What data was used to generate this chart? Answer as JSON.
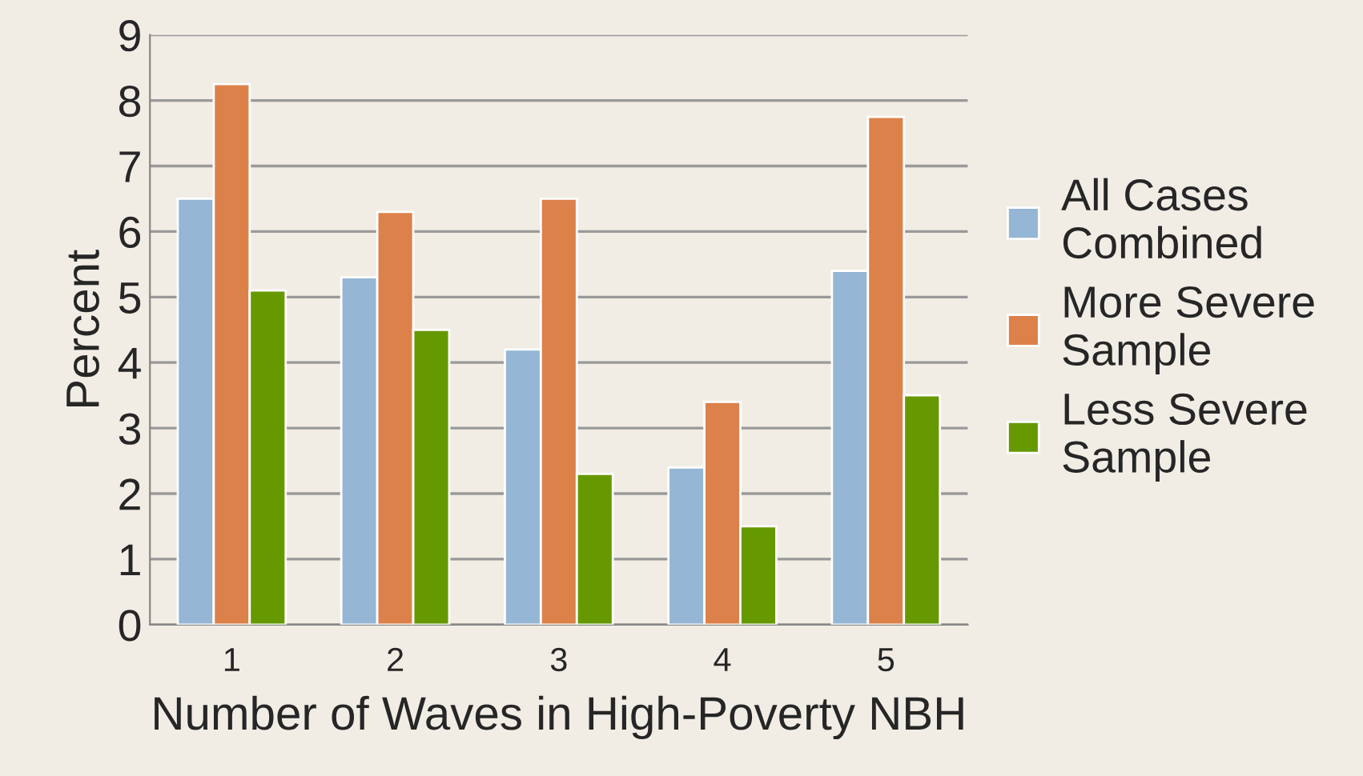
{
  "chart_data": {
    "type": "bar",
    "xlabel": "Number of Waves in High-Poverty NBH",
    "ylabel": "Percent",
    "categories": [
      "1",
      "2",
      "3",
      "4",
      "5"
    ],
    "series": [
      {
        "name": "All Cases Combined",
        "color": "#95b6d4",
        "values": [
          6.5,
          5.3,
          4.2,
          2.4,
          5.4
        ]
      },
      {
        "name": "More Severe Sample",
        "color": "#dd814a",
        "values": [
          8.25,
          6.3,
          6.5,
          3.4,
          7.75
        ]
      },
      {
        "name": "Less Severe Sample",
        "color": "#669900",
        "values": [
          5.1,
          4.5,
          2.3,
          1.5,
          3.5
        ]
      }
    ],
    "ylim": [
      0,
      9
    ],
    "yticks": [
      0,
      1,
      2,
      3,
      4,
      5,
      6,
      7,
      8,
      9
    ],
    "grid": "y",
    "legend": "right"
  }
}
